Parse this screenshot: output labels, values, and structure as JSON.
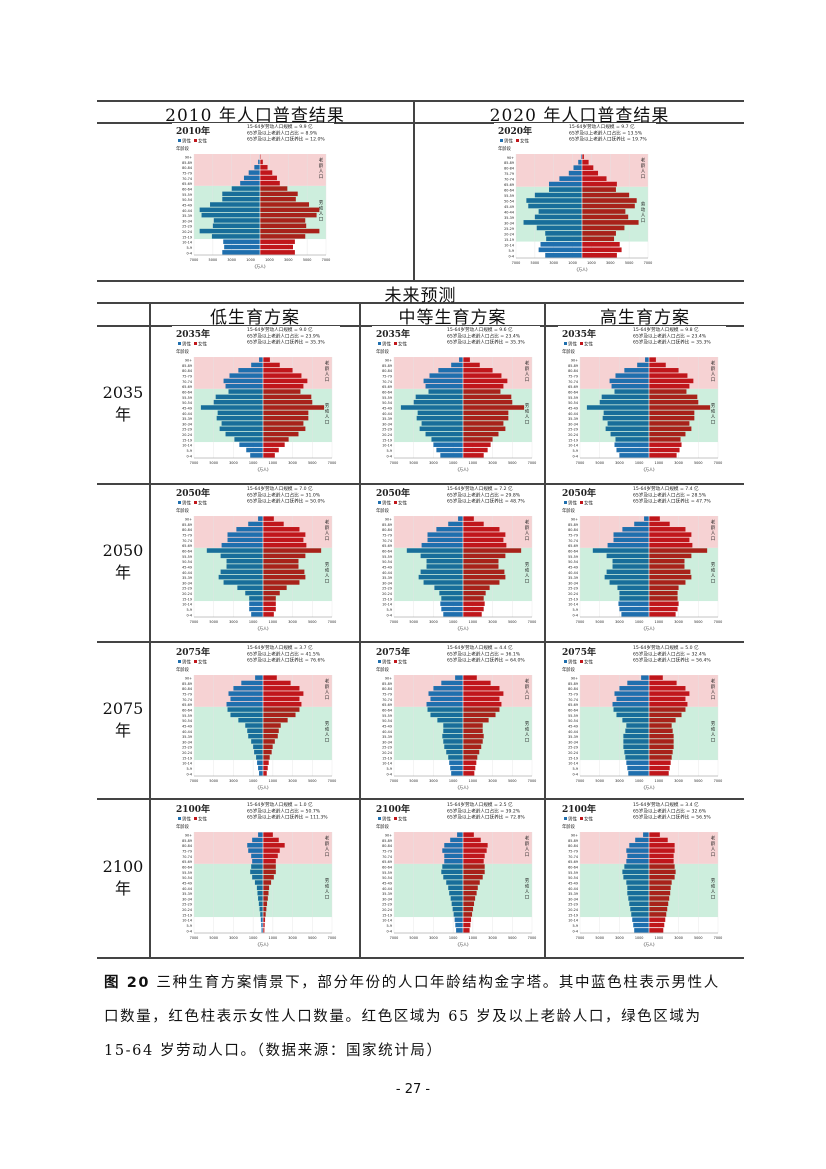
{
  "table": {
    "census_headers": [
      "2010 年人口普查结果",
      "2020 年人口普查结果"
    ],
    "forecast_title": "未来预测",
    "scenario_headers": [
      "低生育方案",
      "中等生育方案",
      "高生育方案"
    ],
    "row_labels": [
      "2035\n年",
      "2050\n年",
      "2075\n年",
      "2100\n年"
    ]
  },
  "pyramid_common": {
    "legend_male": "男性",
    "legend_female": "女性",
    "age_axis_label": "年龄段",
    "x_axis_label": "(万人)",
    "elderly_label": "老龄人口",
    "working_label": "劳动人口",
    "colors": {
      "male": "#1f6fae",
      "female": "#c0161b",
      "elderly_zone": "#f6d2d3",
      "working_zone": "#cdeedd"
    },
    "age_groups": [
      "0-4",
      "5-9",
      "10-14",
      "15-19",
      "20-24",
      "25-29",
      "30-34",
      "35-39",
      "40-44",
      "45-49",
      "50-54",
      "55-59",
      "60-64",
      "65-69",
      "70-74",
      "75-79",
      "80-84",
      "85-89",
      "90+"
    ],
    "x_ticks": [
      "7000",
      "5000",
      "3000",
      "1000",
      "1000",
      "3000",
      "5000",
      "7000"
    ]
  },
  "chart_data": [
    {
      "id": "census-2010",
      "type": "bar",
      "title": "2010年",
      "stats": [
        "15-64岁劳动人口规模 = 9.9 亿",
        "65岁及以上老龄人口占比 = 8.9%",
        "65岁及以上老龄人口抚养比 = 12.0%"
      ],
      "male": [
        4000,
        3800,
        3900,
        5100,
        6400,
        5000,
        4900,
        6200,
        6400,
        5300,
        4000,
        4000,
        3000,
        2100,
        1700,
        1200,
        600,
        200,
        40
      ],
      "female": [
        3700,
        3500,
        3700,
        4800,
        6300,
        4900,
        4800,
        6000,
        6300,
        5200,
        3800,
        4000,
        2900,
        2100,
        1800,
        1300,
        800,
        300,
        80
      ]
    },
    {
      "id": "census-2020",
      "type": "bar",
      "title": "2020年",
      "stats": [
        "15-64岁劳动人口规模 = 9.7 亿",
        "65岁及以上老龄人口占比 = 13.5%",
        "65岁及以上老龄人口抚养比 = 19.7%"
      ],
      "male": [
        3900,
        4600,
        4400,
        3800,
        3900,
        4800,
        6200,
        5000,
        4600,
        5700,
        5900,
        5000,
        3500,
        3500,
        2400,
        1400,
        900,
        400,
        100
      ],
      "female": [
        3700,
        4200,
        4000,
        3400,
        3600,
        4500,
        6000,
        4900,
        4600,
        5600,
        5800,
        5000,
        3600,
        3700,
        2600,
        1700,
        1200,
        700,
        200
      ]
    },
    {
      "id": "low-2035",
      "type": "bar",
      "title": "2035年",
      "stats": [
        "15-64岁劳动人口规模 = 9.0 亿",
        "65岁及以上老龄人口占比 = 23.9%",
        "65岁及以上老龄人口抚养比 = 35.3%"
      ],
      "male": [
        1300,
        1700,
        2400,
        2900,
        3800,
        4400,
        4200,
        4700,
        4600,
        6300,
        5000,
        4800,
        3500,
        3800,
        4000,
        3400,
        2500,
        1200,
        400
      ],
      "female": [
        1200,
        1600,
        2200,
        2600,
        3600,
        4300,
        4100,
        4600,
        4600,
        6200,
        5000,
        4900,
        3800,
        4100,
        4500,
        3900,
        3000,
        1700,
        700
      ]
    },
    {
      "id": "mid-2035",
      "type": "bar",
      "title": "2035年",
      "stats": [
        "15-64岁劳动人口规模 = 9.6 亿",
        "65岁及以上老龄人口占比 = 23.4%",
        "65岁及以上老龄人口抚养比 = 35.3%"
      ],
      "male": [
        2300,
        2700,
        3000,
        3200,
        3800,
        4400,
        4200,
        4700,
        4600,
        6300,
        5000,
        4800,
        3500,
        3800,
        4000,
        3400,
        2500,
        1200,
        400
      ],
      "female": [
        2100,
        2500,
        2800,
        3000,
        3600,
        4300,
        4100,
        4600,
        4600,
        6200,
        5000,
        4900,
        3800,
        4100,
        4500,
        3900,
        3000,
        1700,
        700
      ]
    },
    {
      "id": "high-2035",
      "type": "bar",
      "title": "2035年",
      "stats": [
        "15-64岁劳动人口规模 = 9.8 亿",
        "65岁及以上老龄人口占比 = 23.4%",
        "65岁及以上老龄人口抚养比 = 35.3%"
      ],
      "male": [
        3000,
        3300,
        3500,
        3400,
        3900,
        4400,
        4200,
        4700,
        4600,
        6300,
        5000,
        4800,
        3500,
        3800,
        4000,
        3400,
        2500,
        1200,
        400
      ],
      "female": [
        2800,
        3100,
        3300,
        3200,
        3700,
        4300,
        4100,
        4600,
        4600,
        6200,
        5000,
        4900,
        3800,
        4100,
        4500,
        3900,
        3000,
        1700,
        700
      ]
    },
    {
      "id": "low-2050",
      "type": "bar",
      "title": "2050年",
      "stats": [
        "15-64岁劳动人口规模 = 7.0 亿",
        "65岁及以上老龄人口占比 = 31.0%",
        "65岁及以上老龄人口抚养比 = 50.0%"
      ],
      "male": [
        1200,
        1400,
        1400,
        1400,
        1800,
        2600,
        4000,
        4500,
        4300,
        3700,
        3700,
        4300,
        5700,
        4200,
        3600,
        3600,
        2700,
        1500,
        500
      ],
      "female": [
        1100,
        1300,
        1300,
        1300,
        1700,
        2400,
        3700,
        4300,
        4200,
        3600,
        3600,
        4300,
        5900,
        4400,
        4100,
        4300,
        3700,
        2100,
        1100
      ]
    },
    {
      "id": "mid-2050",
      "type": "bar",
      "title": "2050年",
      "stats": [
        "15-64岁劳动人口规模 = 7.2 亿",
        "65岁及以上老龄人口占比 = 29.8%",
        "65岁及以上老龄人口抚养比 = 48.7%"
      ],
      "male": [
        2000,
        2200,
        2300,
        2200,
        2400,
        2900,
        4000,
        4500,
        4300,
        3700,
        3700,
        4300,
        5700,
        4200,
        3600,
        3600,
        2700,
        1500,
        500
      ],
      "female": [
        1900,
        2100,
        2200,
        2100,
        2300,
        2700,
        3700,
        4300,
        4200,
        3600,
        3600,
        4300,
        5900,
        4400,
        4100,
        4300,
        3700,
        2100,
        1100
      ]
    },
    {
      "id": "high-2050",
      "type": "bar",
      "title": "2050年",
      "stats": [
        "15-64岁劳动人口规模 = 7.4 亿",
        "65岁及以上老龄人口占比 = 28.5%",
        "65岁及以上老龄人口抚养比 = 47.7%"
      ],
      "male": [
        2800,
        3000,
        3100,
        3000,
        3000,
        3200,
        4000,
        4500,
        4300,
        3700,
        3700,
        4300,
        5700,
        4200,
        3600,
        3600,
        2700,
        1500,
        500
      ],
      "female": [
        2700,
        2900,
        3000,
        2900,
        2900,
        3000,
        3700,
        4300,
        4200,
        3600,
        3600,
        4300,
        5900,
        4400,
        4100,
        4300,
        3700,
        2100,
        1100
      ]
    },
    {
      "id": "low-2075",
      "type": "bar",
      "title": "2075年",
      "stats": [
        "15-64岁劳动人口规模 = 3.7 亿",
        "65岁及以上老龄人口占比 = 41.5%",
        "65岁及以上老龄人口抚养比 = 76.6%"
      ],
      "male": [
        400,
        500,
        600,
        700,
        900,
        1000,
        1200,
        1500,
        1600,
        1800,
        2500,
        3300,
        3600,
        3700,
        3300,
        3500,
        3000,
        2200,
        800
      ],
      "female": [
        380,
        480,
        580,
        680,
        880,
        980,
        1200,
        1500,
        1600,
        1800,
        2500,
        3300,
        3700,
        3900,
        3700,
        4100,
        3700,
        2800,
        1400
      ]
    },
    {
      "id": "mid-2075",
      "type": "bar",
      "title": "2075年",
      "stats": [
        "15-64岁劳动人口规模 = 4.4 亿",
        "65岁及以上老龄人口占比 = 36.1%",
        "65岁及以上老龄人口抚养比 = 64.0%"
      ],
      "male": [
        1200,
        1300,
        1400,
        1500,
        1700,
        1900,
        2000,
        2100,
        2000,
        2000,
        2600,
        3300,
        3600,
        3700,
        3300,
        3500,
        3000,
        2200,
        800
      ],
      "female": [
        1150,
        1250,
        1350,
        1450,
        1650,
        1850,
        2000,
        2100,
        2000,
        2000,
        2600,
        3300,
        3700,
        3900,
        3700,
        4100,
        3700,
        2800,
        1400
      ]
    },
    {
      "id": "high-2075",
      "type": "bar",
      "title": "2075年",
      "stats": [
        "15-64岁劳动人口规模 = 5.0 亿",
        "65岁及以上老龄人口占比 = 32.4%",
        "65岁及以上老龄人口抚养比 = 56.4%"
      ],
      "male": [
        2100,
        2200,
        2300,
        2400,
        2500,
        2600,
        2600,
        2600,
        2400,
        2300,
        2700,
        3300,
        3600,
        3700,
        3300,
        3500,
        3000,
        2200,
        800
      ],
      "female": [
        2000,
        2100,
        2200,
        2300,
        2400,
        2500,
        2500,
        2500,
        2400,
        2300,
        2700,
        3300,
        3700,
        3900,
        3700,
        4100,
        3700,
        2800,
        1400
      ]
    },
    {
      "id": "low-2100",
      "type": "bar",
      "title": "2100年",
      "stats": [
        "15-64岁劳动人口规模 = 1.0 亿",
        "65岁及以上老龄人口占比 = 50.7%",
        "65岁及以上老龄人口抚养比 = 111.3%"
      ],
      "male": [
        150,
        180,
        220,
        280,
        350,
        420,
        500,
        560,
        620,
        820,
        1100,
        1300,
        1200,
        1100,
        1200,
        1500,
        1600,
        1100,
        500
      ],
      "female": [
        140,
        170,
        210,
        270,
        340,
        410,
        490,
        560,
        620,
        820,
        1100,
        1300,
        1300,
        1300,
        1500,
        1700,
        2200,
        1600,
        1000
      ]
    },
    {
      "id": "mid-2100",
      "type": "bar",
      "title": "2100年",
      "stats": [
        "15-64岁劳动人口规模 = 2.5 亿",
        "65岁及以上老龄人口占比 = 39.2%",
        "65岁及以上老龄人口抚养比 = 72.8%"
      ],
      "male": [
        700,
        780,
        850,
        950,
        1050,
        1150,
        1250,
        1400,
        1500,
        1700,
        2000,
        2200,
        2100,
        1900,
        1900,
        2100,
        1900,
        1300,
        600
      ],
      "female": [
        670,
        750,
        820,
        920,
        1020,
        1120,
        1230,
        1380,
        1500,
        1700,
        2000,
        2200,
        2200,
        2100,
        2200,
        2400,
        2500,
        1800,
        1100
      ]
    },
    {
      "id": "high-2100",
      "type": "bar",
      "title": "2100年",
      "stats": [
        "15-64岁劳动人口规模 = 3.4 亿",
        "65岁及以上老龄人口占比 = 32.6%",
        "65岁及以上老龄人口抚养比 = 56.5%"
      ],
      "male": [
        1500,
        1600,
        1700,
        1800,
        1900,
        2000,
        2100,
        2200,
        2200,
        2300,
        2600,
        2700,
        2500,
        2300,
        2200,
        2300,
        2000,
        1400,
        600
      ],
      "female": [
        1450,
        1550,
        1650,
        1750,
        1850,
        1950,
        2050,
        2150,
        2200,
        2300,
        2600,
        2700,
        2600,
        2500,
        2500,
        2600,
        2600,
        1900,
        1100
      ]
    }
  ],
  "caption": {
    "label": "图 20",
    "text": " 三种生育方案情景下，部分年份的人口年龄结构金字塔。其中蓝色柱表示男性人口数量，红色柱表示女性人口数量。红色区域为 65 岁及以上老龄人口，绿色区域为 15-64 岁劳动人口。（数据来源：国家统计局）"
  },
  "page_number": "- 27 -"
}
